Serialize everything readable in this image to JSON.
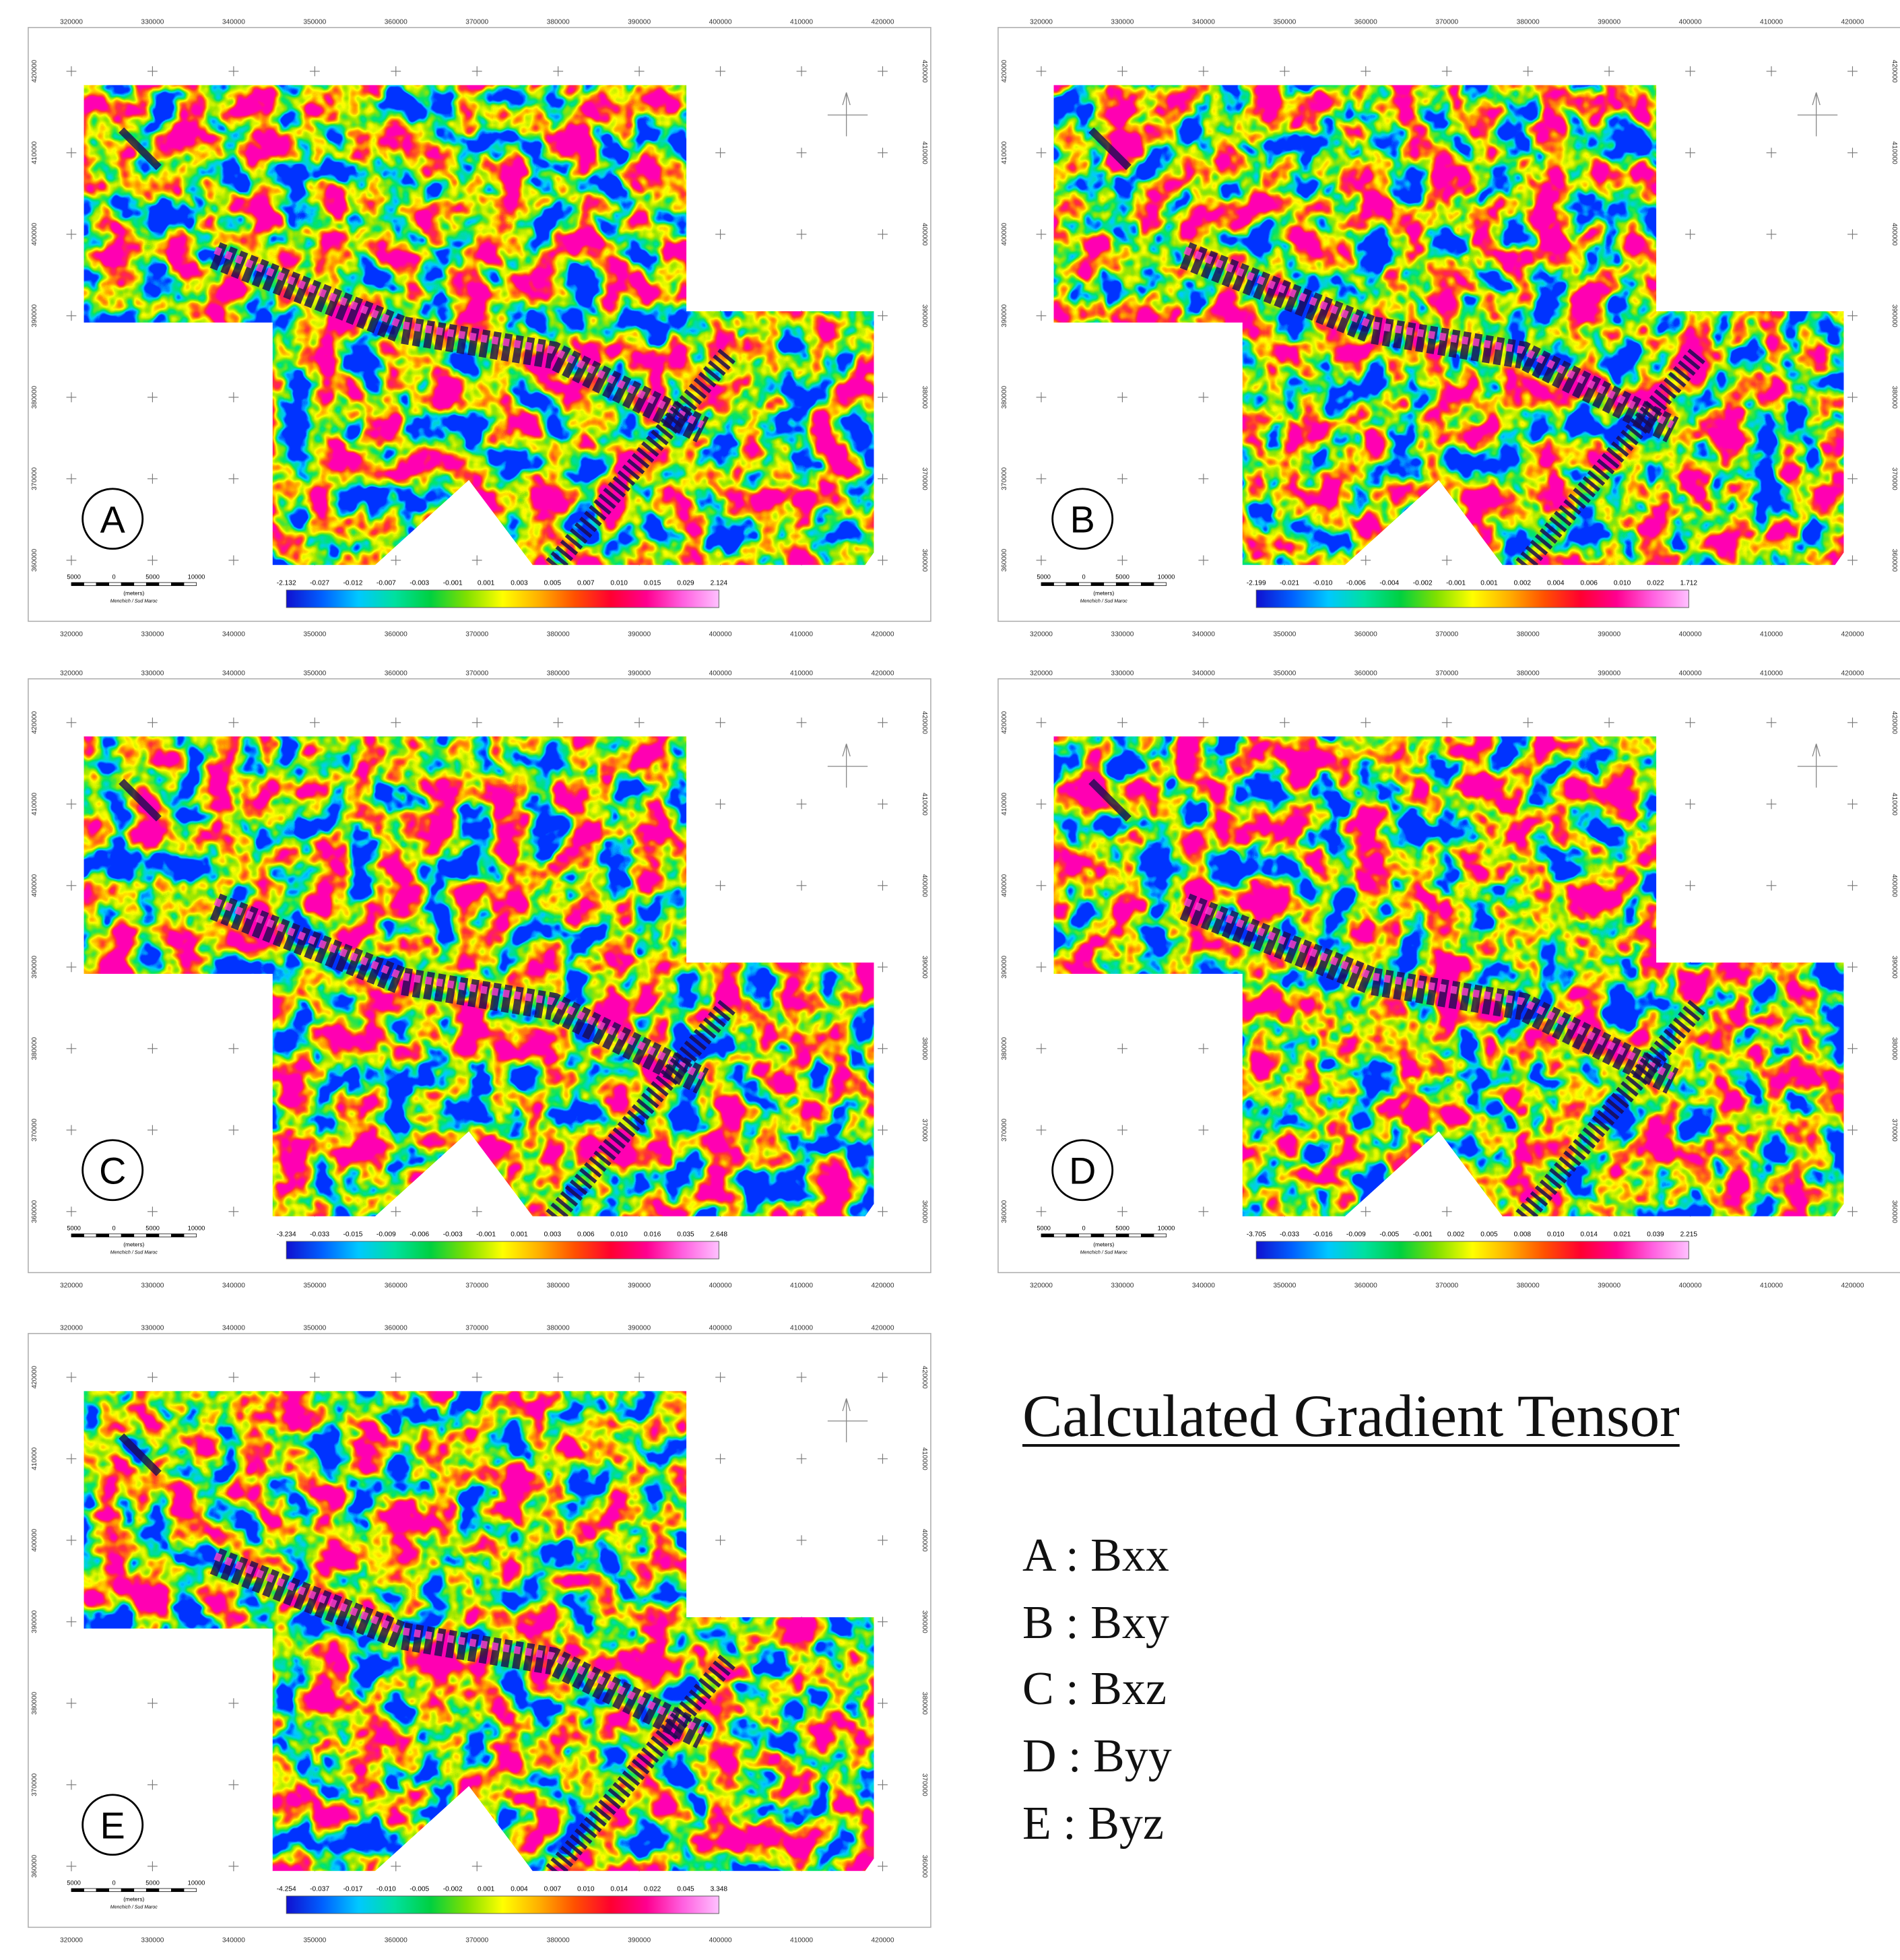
{
  "axes": {
    "x_ticks": [
      320000,
      330000,
      340000,
      350000,
      360000,
      370000,
      380000,
      390000,
      400000,
      410000,
      420000
    ],
    "y_ticks": [
      420000,
      410000,
      400000,
      390000,
      380000,
      370000,
      360000
    ]
  },
  "scale_bar": {
    "labels": [
      "5000",
      "0",
      "5000",
      "10000"
    ],
    "unit": "(meters)",
    "credit": "Menchich / Sud Maroc"
  },
  "panels": [
    {
      "label": "A",
      "colorbar_labels": [
        "-2.132",
        "-0.027",
        "-0.012",
        "-0.007",
        "-0.003",
        "-0.001",
        "0.001",
        "0.003",
        "0.005",
        "0.007",
        "0.010",
        "0.015",
        "0.029",
        "2.124"
      ]
    },
    {
      "label": "B",
      "colorbar_labels": [
        "-2.199",
        "-0.021",
        "-0.010",
        "-0.006",
        "-0.004",
        "-0.002",
        "-0.001",
        "0.001",
        "0.002",
        "0.004",
        "0.006",
        "0.010",
        "0.022",
        "1.712"
      ]
    },
    {
      "label": "C",
      "colorbar_labels": [
        "-3.234",
        "-0.033",
        "-0.015",
        "-0.009",
        "-0.006",
        "-0.003",
        "-0.001",
        "0.001",
        "0.003",
        "0.006",
        "0.010",
        "0.016",
        "0.035",
        "2.648"
      ]
    },
    {
      "label": "D",
      "colorbar_labels": [
        "-3.705",
        "-0.033",
        "-0.016",
        "-0.009",
        "-0.005",
        "-0.001",
        "0.002",
        "0.005",
        "0.008",
        "0.010",
        "0.014",
        "0.021",
        "0.039",
        "2.215"
      ]
    },
    {
      "label": "E",
      "colorbar_labels": [
        "-4.254",
        "-0.037",
        "-0.017",
        "-0.010",
        "-0.005",
        "-0.002",
        "0.001",
        "0.004",
        "0.007",
        "0.010",
        "0.014",
        "0.022",
        "0.045",
        "3.348"
      ]
    }
  ],
  "legend": {
    "title": "Calculated Gradient Tensor",
    "items": [
      "A : Bxx",
      "B : Bxy",
      "C : Bxz",
      "D : Byy",
      "E : Byz"
    ]
  }
}
